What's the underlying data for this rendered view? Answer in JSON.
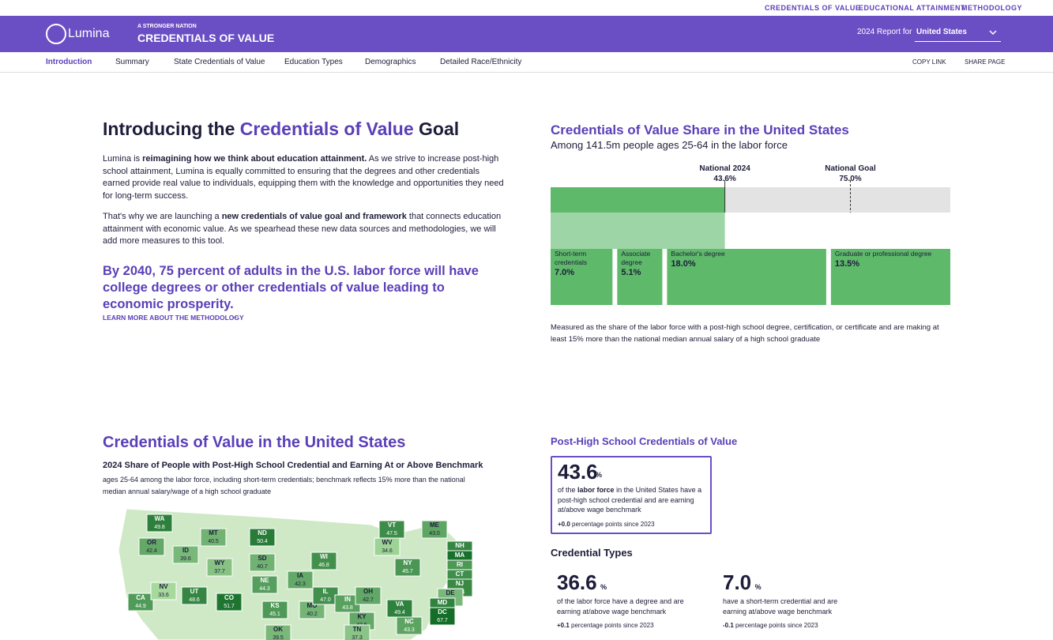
{
  "top_links": [
    "CREDENTIALS OF VALUE",
    "EDUCATIONAL ATTAINMENT",
    "METHODOLOGY"
  ],
  "header": {
    "logo": "Lumina",
    "tag": "A STRONGER NATION",
    "brand": "CREDENTIALS OF VALUE",
    "report_label": "2024 Report for",
    "report_value": "United States"
  },
  "nav": [
    "Introduction",
    "Summary",
    "State Credentials of Value",
    "Education Types",
    "Demographics",
    "Detailed Race/Ethnicity"
  ],
  "actions": [
    "COPY LINK",
    "SHARE PAGE"
  ],
  "intro": {
    "heading": [
      "Introducing the",
      "Credentials of Value",
      "Goal"
    ],
    "p1": [
      "Lumina is",
      "reimagining how we think about education attainment.",
      "As we strive to increase post-high school attainment, Lumina is equally committed to ensuring that the degrees and other credentials earned provide real value to individuals, equipping them with the knowledge and opportunities they need for long-term success."
    ],
    "p2": [
      "That's why we are launching a",
      "new credentials of value goal and framework",
      "that connects education attainment with economic value. As we spearhead these new data sources and methodologies, we will add more measures to this tool."
    ],
    "statement": "By 2040, 75 percent of adults in the U.S. labor force will have college degrees or other credentials of value leading to economic prosperity.",
    "link": "LEARN MORE ABOUT THE METHODOLOGY"
  },
  "share": {
    "title": "Credentials of Value Share in the United States",
    "subtitle": "Among 141.5m people ages 25-64 in the labor force",
    "note": "Measured as the share of the labor force with a post-high school degree, certification, or certificate and are making at least 15% more than the national median annual salary of a high school graduate"
  },
  "chart_data": {
    "type": "stacked-share",
    "xlim": [
      0,
      100
    ],
    "markers": [
      {
        "name": "National 2024",
        "value": 43.6,
        "value_label": "43.6%"
      },
      {
        "name": "National Goal",
        "value": 75,
        "value_label": "75.0%"
      }
    ],
    "series": [
      {
        "name": "Short-term credentials",
        "color": "#5eb96a",
        "values": [
          7
        ],
        "value_labels": [
          "7.0%"
        ]
      },
      {
        "name": "Associate degree",
        "color": "#5eb96a",
        "values": [
          5.1
        ],
        "value_labels": [
          "5.1%"
        ]
      },
      {
        "name": "Bachelor's degree",
        "color": "#5eb96a",
        "values": [
          18
        ],
        "value_labels": [
          "18.0%"
        ]
      },
      {
        "name": "Graduate or professional degree",
        "color": "#5eb96a",
        "values": [
          13.5
        ],
        "value_labels": [
          "13.5%"
        ]
      }
    ],
    "track_color": "#e3e3e3"
  },
  "map_section": {
    "title": "Credentials of Value in the United States",
    "subtitle": "2024 Share of People with Post-High School Credential and Earning At or Above Benchmark",
    "note": "ages 25-64 among the labor force, including short-term credentials; benchmark reflects 15% more than the national median annual salary/wage of a high school graduate",
    "states": [
      [
        "WA",
        "49.8"
      ],
      [
        "OR",
        "42.4"
      ],
      [
        "CA",
        "44.9"
      ],
      [
        "NV",
        "33.6"
      ],
      [
        "ID",
        "39.6"
      ],
      [
        "MT",
        "40.5"
      ],
      [
        "WY",
        "37.7"
      ],
      [
        "UT",
        "48.6"
      ],
      [
        "CO",
        "51.7"
      ],
      [
        "ND",
        "50.4"
      ],
      [
        "SD",
        "40.7"
      ],
      [
        "NE",
        "44.3"
      ],
      [
        "KS",
        "45.1"
      ],
      [
        "OK",
        "39.5"
      ],
      [
        "IA",
        "42.3"
      ],
      [
        "MO",
        "40.2"
      ],
      [
        "WI",
        "46.8"
      ],
      [
        "IL",
        "47.0"
      ],
      [
        "IN",
        "43.8"
      ],
      [
        "OH",
        "42.7"
      ],
      [
        "KY",
        "42.5"
      ],
      [
        "TN",
        "37.3"
      ],
      [
        "NY",
        "45.7"
      ],
      [
        "WV",
        "34.6"
      ],
      [
        "VA",
        "49.4"
      ],
      [
        "NC",
        "43.3"
      ],
      [
        "VT",
        "47.5"
      ],
      [
        "ME",
        "43.0"
      ],
      [
        "NH",
        "48.6"
      ],
      [
        "MA",
        "52.5"
      ],
      [
        "RI",
        "45.3"
      ],
      [
        "CT",
        "47.2"
      ],
      [
        "NJ",
        "48.1"
      ],
      [
        "DE",
        "39.6"
      ],
      [
        "MD",
        "49.2"
      ],
      [
        "DC",
        "67.7"
      ]
    ]
  },
  "metrics": {
    "title": "Post-High School Credentials of Value",
    "main": {
      "value": "43.6",
      "unit": "%",
      "pre": "of the",
      "force": "labor force",
      "text": "in the United States have a post-high school credential and are earning at/above wage benchmark",
      "change": "+0.0",
      "since": "percentage points since 2023"
    },
    "types_title": "Credential Types",
    "types": [
      {
        "value": "36.6",
        "unit": "%",
        "text": "of the labor force have a degree and are earning at/above wage benchmark",
        "change": "+0.1",
        "since": "percentage points since 2023"
      },
      {
        "value": "7.0",
        "unit": "%",
        "text": "have a short-term credential and are earning at/above wage benchmark",
        "change": "-0.1",
        "since": "percentage points since 2023"
      }
    ]
  }
}
